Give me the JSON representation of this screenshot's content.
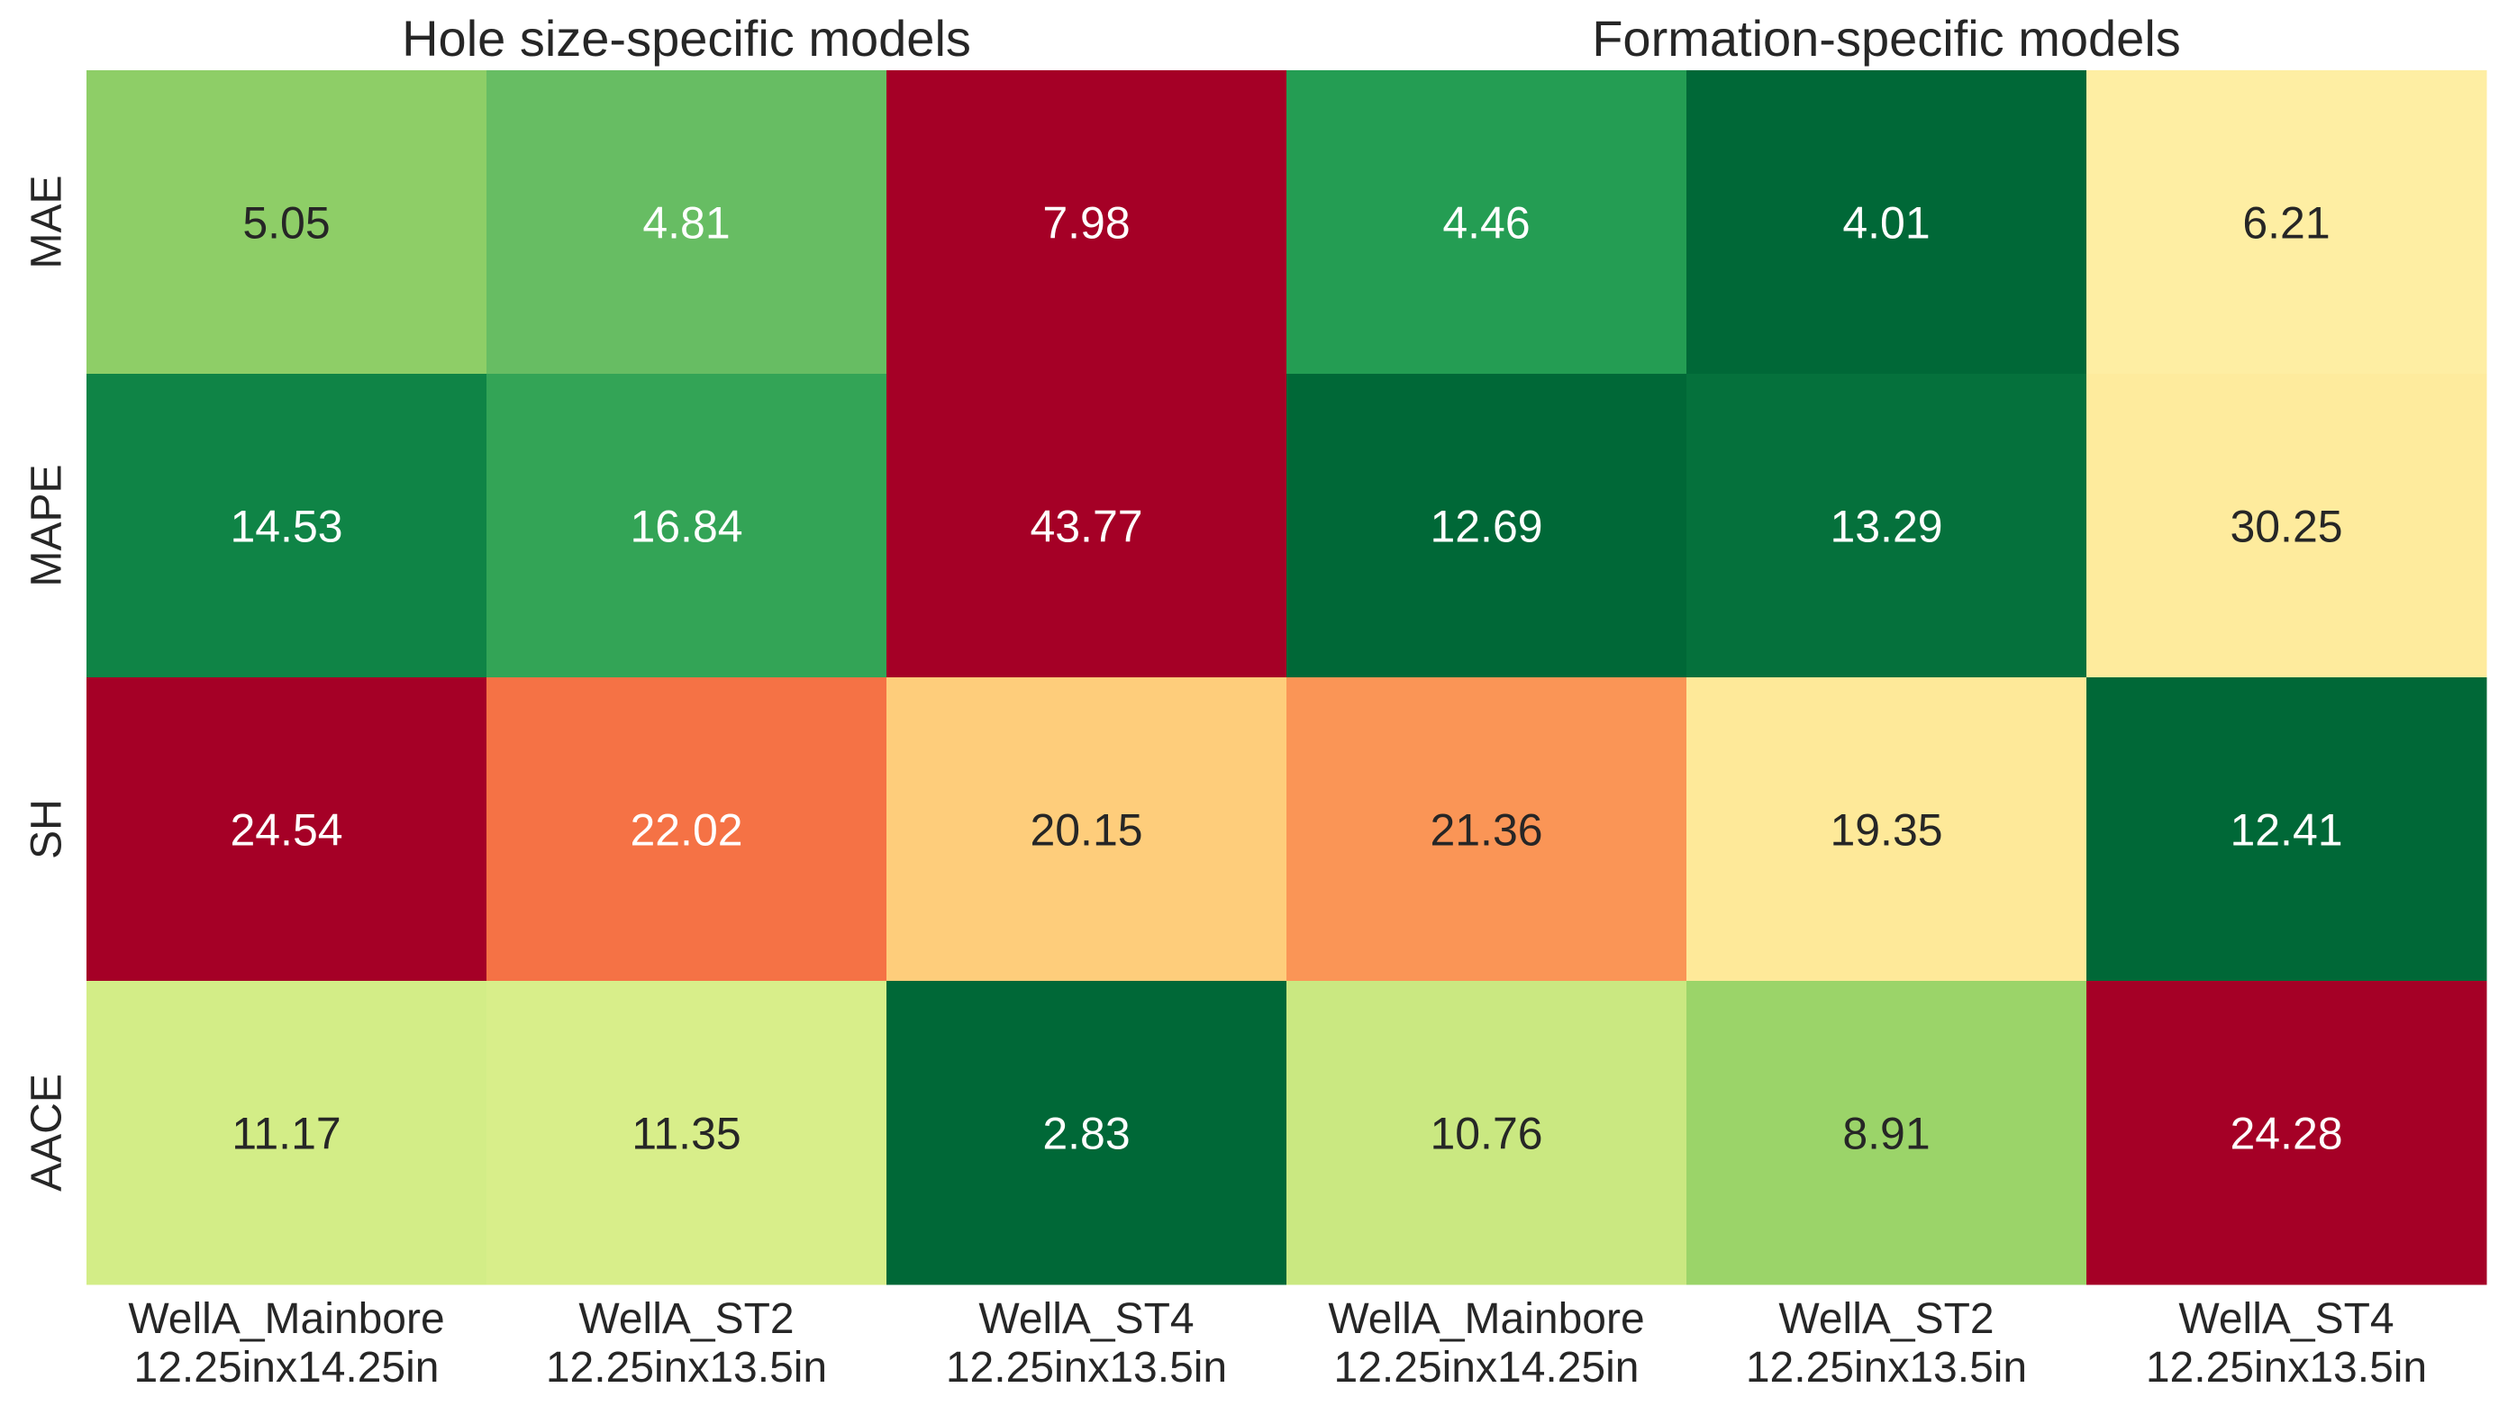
{
  "chart_data": {
    "type": "heatmap",
    "colormap": "RdYlGn_r",
    "normalization": "per-row",
    "group_titles": [
      {
        "label": "Hole size-specific models",
        "columns": [
          0,
          1,
          2
        ]
      },
      {
        "label": "Formation-specific models",
        "columns": [
          3,
          4,
          5
        ]
      }
    ],
    "columns": [
      {
        "line1": "WellA_Mainbore",
        "line2": "12.25inx14.25in"
      },
      {
        "line1": "WellA_ST2",
        "line2": "12.25inx13.5in"
      },
      {
        "line1": "WellA_ST4",
        "line2": "12.25inx13.5in"
      },
      {
        "line1": "WellA_Mainbore",
        "line2": "12.25inx14.25in"
      },
      {
        "line1": "WellA_ST2",
        "line2": "12.25inx13.5in"
      },
      {
        "line1": "WellA_ST4",
        "line2": "12.25inx13.5in"
      }
    ],
    "rows": [
      "MAE",
      "MAPE",
      "SH",
      "AACE"
    ],
    "values": [
      [
        5.05,
        4.81,
        7.98,
        4.46,
        4.01,
        6.21
      ],
      [
        14.53,
        16.84,
        43.77,
        12.69,
        13.29,
        30.25
      ],
      [
        24.54,
        22.02,
        20.15,
        21.36,
        19.35,
        12.41
      ],
      [
        11.17,
        11.35,
        2.83,
        10.76,
        8.91,
        24.28
      ]
    ],
    "value_labels": [
      [
        "5.05",
        "4.81",
        "7.98",
        "4.46",
        "4.01",
        "6.21"
      ],
      [
        "14.53",
        "16.84",
        "43.77",
        "12.69",
        "13.29",
        "30.25"
      ],
      [
        "24.54",
        "22.02",
        "20.15",
        "21.36",
        "19.35",
        "12.41"
      ],
      [
        "11.17",
        "11.35",
        "2.83",
        "10.76",
        "8.91",
        "24.28"
      ]
    ],
    "colorbar": false
  }
}
